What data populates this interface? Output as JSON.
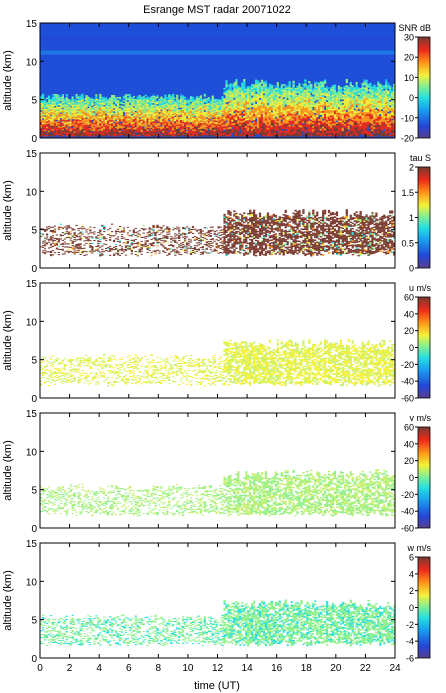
{
  "chart_data": {
    "title": "Esrange MST radar 20071022",
    "type": "heatmap",
    "x_axis": {
      "label": "time (UT)",
      "range": [
        0,
        24
      ],
      "ticks": [
        "0",
        "2",
        "4",
        "6",
        "8",
        "10",
        "12",
        "14",
        "16",
        "18",
        "20",
        "22",
        "24"
      ]
    },
    "shared_y_axis": {
      "label": "altitude (km)",
      "range": [
        0,
        15
      ],
      "ticks": [
        "0",
        "5",
        "10",
        "15"
      ]
    },
    "panels": [
      {
        "colorbar_label": "SNR dB",
        "colorbar_range": [
          -20,
          30
        ],
        "colorbar_ticks": [
          "30",
          "20",
          "10",
          "0",
          "-10",
          "-20"
        ],
        "description": "background filled; strong echoes below 5 km"
      },
      {
        "colorbar_label": "tau S",
        "colorbar_range": [
          0,
          2
        ],
        "colorbar_ticks": [
          "2",
          "1.5",
          "1",
          "0.5",
          "0"
        ],
        "description": "sparse values mostly near upper range between 2 and 7 km"
      },
      {
        "colorbar_label": "u m/s",
        "colorbar_range": [
          -60,
          60
        ],
        "colorbar_ticks": [
          "60",
          "40",
          "20",
          "0",
          "-20",
          "-40",
          "-60"
        ],
        "description": "sparse values near +10 to +20 between 2 and 7 km"
      },
      {
        "colorbar_label": "v m/s",
        "colorbar_range": [
          -60,
          60
        ],
        "colorbar_ticks": [
          "60",
          "40",
          "20",
          "0",
          "-20",
          "-40",
          "-60"
        ],
        "description": "sparse values near 0 to +10 between 2 and 7 km"
      },
      {
        "colorbar_label": "w m/s",
        "colorbar_range": [
          -6,
          6
        ],
        "colorbar_ticks": [
          "6",
          "4",
          "2",
          "0",
          "-2",
          "-4",
          "-6"
        ],
        "description": "sparse values near 0 between 1 and 7 km"
      }
    ]
  }
}
